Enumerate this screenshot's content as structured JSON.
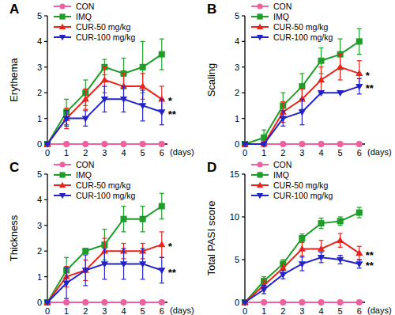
{
  "chart_data": [
    {
      "type": "line",
      "title": "A",
      "y_label": "Erythema",
      "x_label": "(days)",
      "x": [
        0,
        1,
        2,
        3,
        4,
        5,
        6
      ],
      "xlim": [
        0,
        6.3
      ],
      "xticks": [
        0,
        1,
        2,
        3,
        4,
        5,
        6
      ],
      "ylim": [
        0,
        5
      ],
      "yticks": [
        0,
        1,
        2,
        3,
        4,
        5
      ],
      "grid": false,
      "legend": "upper left",
      "series": [
        {
          "name": "CON",
          "color": "#f0609e",
          "marker": "circle",
          "line_style": "solid",
          "values": [
            0,
            0,
            0,
            0,
            0,
            0,
            0
          ],
          "errors": [
            0,
            0,
            0,
            0,
            0,
            0,
            0
          ]
        },
        {
          "name": "IMQ",
          "color": "#1e9e28",
          "marker": "square",
          "line_style": "solid",
          "values": [
            0,
            1.25,
            2.0,
            3.0,
            2.75,
            3.0,
            3.5
          ],
          "errors": [
            0,
            0.5,
            0.5,
            0.3,
            0.6,
            1.0,
            0.6
          ]
        },
        {
          "name": "CUR-50 mg/kg",
          "color": "#e8241c",
          "marker": "triangle-up",
          "line_style": "solid",
          "values": [
            0,
            1.0,
            1.75,
            2.5,
            2.25,
            2.25,
            1.75
          ],
          "errors": [
            0,
            0.4,
            0.4,
            0.5,
            0.5,
            0.5,
            0.5
          ]
        },
        {
          "name": "CUR-100 mg/kg",
          "color": "#2323c8",
          "marker": "triangle-down",
          "line_style": "solid",
          "values": [
            0,
            1.0,
            1.0,
            1.75,
            1.75,
            1.5,
            1.25
          ],
          "errors": [
            0,
            0.3,
            0.3,
            0.5,
            0.5,
            0.6,
            0.5
          ]
        }
      ],
      "annotations": [
        {
          "text": "*",
          "x": 6,
          "y": 1.75
        },
        {
          "text": "**",
          "x": 6,
          "y": 1.25
        }
      ]
    },
    {
      "type": "line",
      "title": "B",
      "y_label": "Scaling",
      "x_label": "(days)",
      "x": [
        0,
        1,
        2,
        3,
        4,
        5,
        6
      ],
      "xlim": [
        0,
        6.3
      ],
      "xticks": [
        0,
        1,
        2,
        3,
        4,
        5,
        6
      ],
      "ylim": [
        0,
        5
      ],
      "yticks": [
        0,
        1,
        2,
        3,
        4,
        5
      ],
      "grid": false,
      "legend": "upper left",
      "series": [
        {
          "name": "CON",
          "color": "#f0609e",
          "marker": "circle",
          "line_style": "solid",
          "values": [
            0,
            0,
            0,
            0,
            0,
            0,
            0
          ],
          "errors": [
            0,
            0,
            0,
            0,
            0,
            0,
            0
          ]
        },
        {
          "name": "IMQ",
          "color": "#1e9e28",
          "marker": "square",
          "line_style": "solid",
          "values": [
            0,
            0.25,
            1.5,
            2.25,
            3.25,
            3.5,
            4.0
          ],
          "errors": [
            0,
            0.3,
            0.5,
            0.5,
            0.5,
            0.6,
            0.5
          ]
        },
        {
          "name": "CUR-50 mg/kg",
          "color": "#e8241c",
          "marker": "triangle-up",
          "line_style": "solid",
          "values": [
            0,
            0,
            1.25,
            1.75,
            2.5,
            3.0,
            2.75
          ],
          "errors": [
            0,
            0,
            0.4,
            0.4,
            0.5,
            0.5,
            0.5
          ]
        },
        {
          "name": "CUR-100 mg/kg",
          "color": "#2323c8",
          "marker": "triangle-down",
          "line_style": "solid",
          "values": [
            0,
            0,
            1.0,
            1.25,
            2.0,
            2.0,
            2.25
          ],
          "errors": [
            0,
            0,
            0.3,
            0.5,
            0,
            0,
            0.3
          ]
        }
      ],
      "annotations": [
        {
          "text": "*",
          "x": 6,
          "y": 2.75
        },
        {
          "text": "**",
          "x": 6,
          "y": 2.25
        }
      ]
    },
    {
      "type": "line",
      "title": "C",
      "y_label": "Thickness",
      "x_label": "(days)",
      "x": [
        0,
        1,
        2,
        3,
        4,
        5,
        6
      ],
      "xlim": [
        0,
        6.3
      ],
      "xticks": [
        0,
        1,
        2,
        3,
        4,
        5,
        6
      ],
      "ylim": [
        0,
        5
      ],
      "yticks": [
        0,
        1,
        2,
        3,
        4,
        5
      ],
      "grid": false,
      "legend": "upper left",
      "series": [
        {
          "name": "CON",
          "color": "#f0609e",
          "marker": "circle",
          "line_style": "solid",
          "values": [
            0,
            0,
            0,
            0,
            0,
            0,
            0
          ],
          "errors": [
            0,
            0,
            0,
            0,
            0,
            0,
            0
          ]
        },
        {
          "name": "IMQ",
          "color": "#1e9e28",
          "marker": "square",
          "line_style": "solid",
          "values": [
            0,
            1.25,
            2.0,
            2.25,
            3.25,
            3.25,
            3.75
          ],
          "errors": [
            0,
            0.5,
            0.1,
            0.6,
            0.5,
            0.5,
            0.5
          ]
        },
        {
          "name": "CUR-50 mg/kg",
          "color": "#e8241c",
          "marker": "triangle-up",
          "line_style": "solid",
          "values": [
            0,
            1.0,
            1.25,
            2.0,
            2.0,
            2.0,
            2.25
          ],
          "errors": [
            0,
            0.4,
            0.4,
            0.5,
            0.3,
            0.3,
            0.5
          ]
        },
        {
          "name": "CUR-100 mg/kg",
          "color": "#2323c8",
          "marker": "triangle-down",
          "line_style": "solid",
          "values": [
            0,
            0.75,
            1.25,
            1.5,
            1.5,
            1.5,
            1.25
          ],
          "errors": [
            0,
            0.6,
            0.6,
            0.6,
            0.6,
            0.6,
            0.5
          ]
        }
      ],
      "annotations": [
        {
          "text": "*",
          "x": 6,
          "y": 2.25
        },
        {
          "text": "**",
          "x": 6,
          "y": 1.25
        }
      ]
    },
    {
      "type": "line",
      "title": "D",
      "y_label": "Total PASI score",
      "x_label": "(days)",
      "x": [
        0,
        1,
        2,
        3,
        4,
        5,
        6
      ],
      "xlim": [
        0,
        6.3
      ],
      "xticks": [
        0,
        1,
        2,
        3,
        4,
        5,
        6
      ],
      "ylim": [
        0,
        15
      ],
      "yticks": [
        0,
        5,
        10,
        15
      ],
      "grid": false,
      "legend": "upper left",
      "series": [
        {
          "name": "CON",
          "color": "#f0609e",
          "marker": "circle",
          "line_style": "solid",
          "values": [
            0,
            0,
            0,
            0,
            0,
            0,
            0
          ],
          "errors": [
            0,
            0,
            0,
            0,
            0,
            0,
            0
          ]
        },
        {
          "name": "IMQ",
          "color": "#1e9e28",
          "marker": "square",
          "line_style": "solid",
          "values": [
            0,
            2.5,
            4.5,
            7.5,
            9.25,
            9.5,
            10.5
          ],
          "errors": [
            0,
            0.5,
            0.5,
            0.5,
            0.6,
            0.5,
            0.6
          ]
        },
        {
          "name": "CUR-50 mg/kg",
          "color": "#e8241c",
          "marker": "triangle-up",
          "line_style": "solid",
          "values": [
            0,
            2.0,
            4.0,
            6.25,
            6.25,
            7.25,
            5.75
          ],
          "errors": [
            0,
            0.5,
            0.5,
            0.8,
            1.0,
            0.8,
            0.8
          ]
        },
        {
          "name": "CUR-100 mg/kg",
          "color": "#2323c8",
          "marker": "triangle-down",
          "line_style": "solid",
          "values": [
            0,
            1.5,
            3.25,
            4.5,
            5.25,
            5.0,
            4.5
          ],
          "errors": [
            0,
            0.5,
            0.5,
            0.8,
            0.6,
            0.5,
            0.5
          ]
        }
      ],
      "annotations": [
        {
          "text": "**",
          "x": 6,
          "y": 5.75
        },
        {
          "text": "**",
          "x": 6,
          "y": 4.5
        }
      ]
    }
  ]
}
